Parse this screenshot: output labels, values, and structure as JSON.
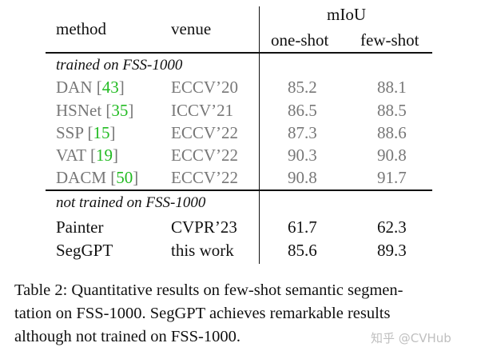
{
  "table": {
    "headers": {
      "method": "method",
      "venue": "venue",
      "miou": "mIoU",
      "one_shot": "one-shot",
      "few_shot": "few-shot"
    },
    "sections": [
      {
        "title": "trained on FSS-1000",
        "rows": [
          {
            "method": "DAN",
            "cite": "43",
            "venue": "ECCV’20",
            "one_shot": "85.2",
            "few_shot": "88.1"
          },
          {
            "method": "HSNet",
            "cite": "35",
            "venue": "ICCV’21",
            "one_shot": "86.5",
            "few_shot": "88.5"
          },
          {
            "method": "SSP",
            "cite": "15",
            "venue": "ECCV’22",
            "one_shot": "87.3",
            "few_shot": "88.6"
          },
          {
            "method": "VAT",
            "cite": "19",
            "venue": "ECCV’22",
            "one_shot": "90.3",
            "few_shot": "90.8"
          },
          {
            "method": "DACM",
            "cite": "50",
            "venue": "ECCV’22",
            "one_shot": "90.8",
            "few_shot": "91.7"
          }
        ]
      },
      {
        "title": "not trained on FSS-1000",
        "rows": [
          {
            "method": "Painter",
            "venue": "CVPR’23",
            "one_shot": "61.7",
            "few_shot": "62.3"
          },
          {
            "method": "SegGPT",
            "venue": "this work",
            "one_shot": "85.6",
            "few_shot": "89.3"
          }
        ]
      }
    ]
  },
  "caption": {
    "line1": "Table 2: Quantitative results on few-shot semantic segmen-",
    "line2": "tation on FSS-1000.  SegGPT achieves remarkable results",
    "line3": "although not trained on FSS-1000."
  },
  "watermark": "知乎 @CVHub",
  "colors": {
    "text": "#111111",
    "gray_text": "#777777",
    "citation": "#22bb22"
  }
}
